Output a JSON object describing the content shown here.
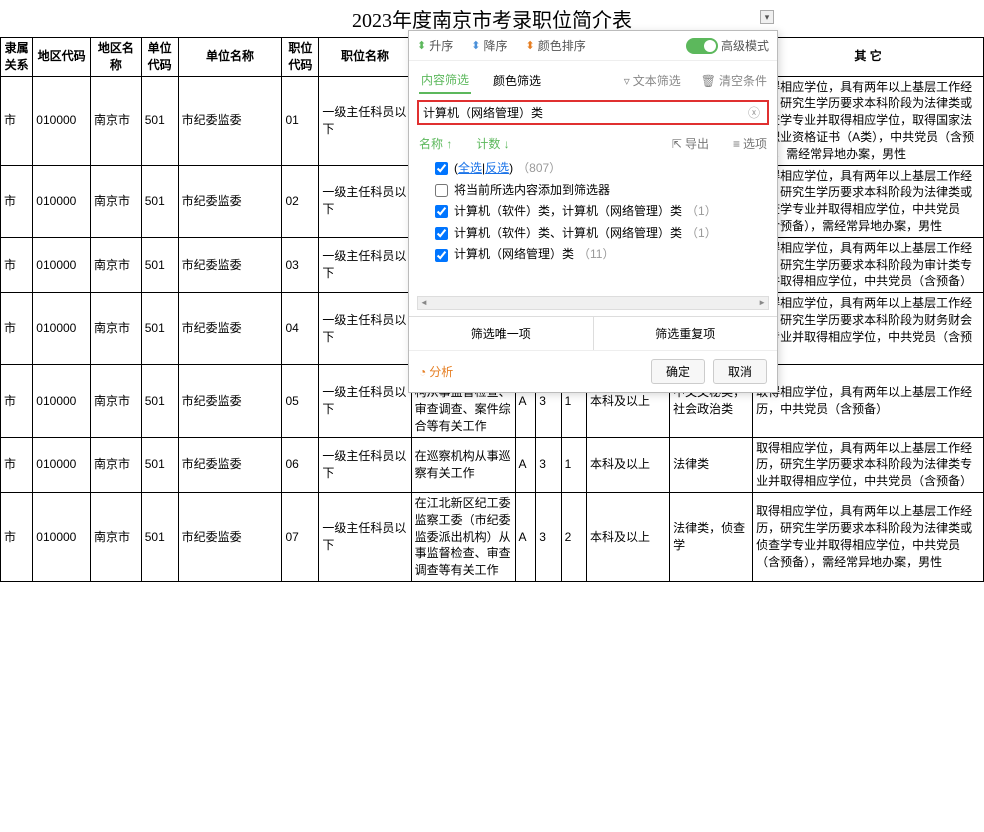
{
  "title": "2023年度南京市考录职位简介表",
  "columns": [
    "隶属关系",
    "地区代码",
    "地区名称",
    "单位代码",
    "单位名称",
    "职位代码",
    "职位名称",
    "",
    "",
    "",
    "",
    "",
    "",
    "其 它"
  ],
  "rows": [
    {
      "c": [
        "市",
        "010000",
        "南京市",
        "501",
        "市纪委监委",
        "01",
        "一级主任科员以下",
        "",
        "",
        "",
        "",
        "",
        "",
        "取得相应学位，具有两年以上基层工作经历，研究生学历要求本科阶段为法律类或侦查学专业并取得相应学位，取得国家法律职业资格证书（A类），中共党员（含预备），需经常异地办案，男性"
      ]
    },
    {
      "c": [
        "市",
        "010000",
        "南京市",
        "501",
        "市纪委监委",
        "02",
        "一级主任科员以下",
        "",
        "",
        "",
        "",
        "",
        "",
        "取得相应学位，具有两年以上基层工作经历，研究生学历要求本科阶段为法律类或侦查学专业并取得相应学位，中共党员（含预备），需经常异地办案，男性"
      ]
    },
    {
      "c": [
        "市",
        "010000",
        "南京市",
        "501",
        "市纪委监委",
        "03",
        "一级主任科员以下",
        "",
        "",
        "",
        "",
        "",
        "",
        "取得相应学位，具有两年以上基层工作经历，研究生学历要求本科阶段为审计类专业并取得相应学位，中共党员（含预备）"
      ]
    },
    {
      "c": [
        "市",
        "010000",
        "南京市",
        "501",
        "市纪委监委",
        "04",
        "一级主任科员以下",
        "合等有关工作",
        "",
        "",
        "",
        "",
        "",
        "取得相应学位，具有两年以上基层工作经历，研究生学历要求本科阶段为财务财会类专业并取得相应学位，中共党员（含预备）"
      ]
    },
    {
      "c": [
        "市",
        "010000",
        "南京市",
        "501",
        "市纪委监委",
        "05",
        "一级主任科员以下",
        "在委机关或派驻机构从事监督检查、审查调查、案件综合等有关工作",
        "A",
        "3",
        "1",
        "本科及以上",
        "中文文秘类，社会政治类",
        "取得相应学位，具有两年以上基层工作经历，中共党员（含预备）"
      ]
    },
    {
      "c": [
        "市",
        "010000",
        "南京市",
        "501",
        "市纪委监委",
        "06",
        "一级主任科员以下",
        "在巡察机构从事巡察有关工作",
        "A",
        "3",
        "1",
        "本科及以上",
        "法律类",
        "取得相应学位，具有两年以上基层工作经历，研究生学历要求本科阶段为法律类专业并取得相应学位，中共党员（含预备）"
      ]
    },
    {
      "c": [
        "市",
        "010000",
        "南京市",
        "501",
        "市纪委监委",
        "07",
        "一级主任科员以下",
        "在江北新区纪工委监察工委（市纪委监委派出机构）从事监督检查、审查调查等有关工作",
        "A",
        "3",
        "2",
        "本科及以上",
        "法律类，侦查学",
        "取得相应学位，具有两年以上基层工作经历，研究生学历要求本科阶段为法律类或侦查学专业并取得相应学位，中共党员（含预备），需经常异地办案，男性"
      ]
    }
  ],
  "popup": {
    "toolbar": {
      "asc": "升序",
      "desc": "降序",
      "color": "颜色排序",
      "adv": "高级模式"
    },
    "tabs": {
      "content": "内容筛选",
      "color": "颜色筛选",
      "text": "文本筛选",
      "clear": "清空条件"
    },
    "search": "计算机（网络管理）类",
    "list_header": {
      "name": "名称 ↑",
      "count": "计数 ↓",
      "export": "导出",
      "options": "选项"
    },
    "items": [
      {
        "checked": true,
        "select_all": true,
        "all": "全选",
        "inv": "反选",
        "count": "（807）"
      },
      {
        "checked": false,
        "label": "将当前所选内容添加到筛选器"
      },
      {
        "checked": true,
        "label": "计算机（软件）类，计算机（网络管理）类",
        "count": "（1）"
      },
      {
        "checked": true,
        "label": "计算机（软件）类、计算机（网络管理）类",
        "count": "（1）"
      },
      {
        "checked": true,
        "label": "计算机（网络管理）类",
        "count": "（11）"
      }
    ],
    "filter_unique": "筛选唯一项",
    "filter_dup": "筛选重复项",
    "analysis": "分析",
    "ok": "确定",
    "cancel": "取消"
  }
}
